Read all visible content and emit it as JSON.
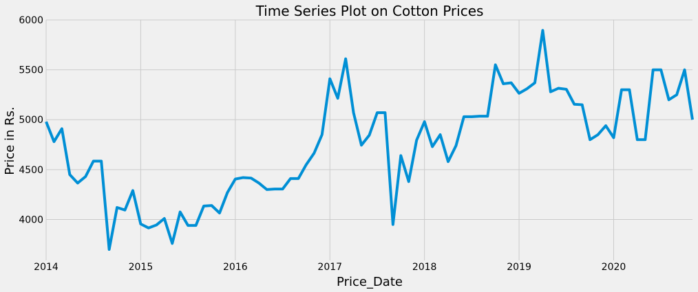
{
  "chart_data": {
    "type": "line",
    "title": "Time Series Plot on Cotton Prices",
    "xlabel": "Price_Date",
    "ylabel": "Price in Rs.",
    "ylim": [
      3590,
      6000
    ],
    "xlim": [
      "2014-01",
      "2020-11"
    ],
    "y_ticks": [
      4000,
      4500,
      5000,
      5500,
      6000
    ],
    "x_ticks": [
      "2014",
      "2015",
      "2016",
      "2017",
      "2018",
      "2019",
      "2020"
    ],
    "grid": true,
    "line_color": "#008fd5",
    "series": [
      {
        "x": [
          "2014-01",
          "2014-02",
          "2014-03",
          "2014-04",
          "2014-05",
          "2014-06",
          "2014-07",
          "2014-08",
          "2014-09",
          "2014-10",
          "2014-11",
          "2014-12",
          "2015-01",
          "2015-02",
          "2015-03",
          "2015-04",
          "2015-05",
          "2015-06",
          "2015-07",
          "2015-08",
          "2015-09",
          "2015-10",
          "2015-11",
          "2015-12",
          "2016-01",
          "2016-02",
          "2016-03",
          "2016-04",
          "2016-05",
          "2016-06",
          "2016-07",
          "2016-08",
          "2016-09",
          "2016-10",
          "2016-11",
          "2016-12",
          "2017-01",
          "2017-02",
          "2017-03",
          "2017-04",
          "2017-05",
          "2017-06",
          "2017-07",
          "2017-08",
          "2017-09",
          "2017-10",
          "2017-11",
          "2017-12",
          "2018-01",
          "2018-02",
          "2018-03",
          "2018-04",
          "2018-05",
          "2018-06",
          "2018-07",
          "2018-08",
          "2018-09",
          "2018-10",
          "2018-11",
          "2018-12",
          "2019-01",
          "2019-02",
          "2019-03",
          "2019-04",
          "2019-05",
          "2019-06",
          "2019-07",
          "2019-08",
          "2019-09",
          "2019-10",
          "2019-11",
          "2019-12",
          "2020-01",
          "2020-02",
          "2020-03",
          "2020-04",
          "2020-05",
          "2020-06",
          "2020-07",
          "2020-08",
          "2020-09",
          "2020-10",
          "2020-11"
        ],
        "values": [
          4980,
          4780,
          4910,
          4450,
          4365,
          4430,
          4585,
          4585,
          3700,
          4120,
          4095,
          4290,
          3955,
          3915,
          3945,
          4010,
          3760,
          4075,
          3940,
          3940,
          4135,
          4140,
          4065,
          4270,
          4405,
          4420,
          4415,
          4365,
          4300,
          4305,
          4305,
          4410,
          4410,
          4550,
          4665,
          4850,
          5410,
          5215,
          5610,
          5070,
          4745,
          4845,
          5070,
          5070,
          3950,
          4640,
          4380,
          4795,
          4980,
          4730,
          4850,
          4580,
          4740,
          5030,
          5030,
          5035,
          5035,
          5550,
          5360,
          5370,
          5265,
          5310,
          5370,
          5895,
          5280,
          5315,
          5305,
          5155,
          5150,
          4800,
          4850,
          4940,
          4820,
          5300,
          5300,
          4800,
          4800,
          5500,
          5500,
          5200,
          5250,
          5500,
          5000
        ]
      }
    ]
  }
}
